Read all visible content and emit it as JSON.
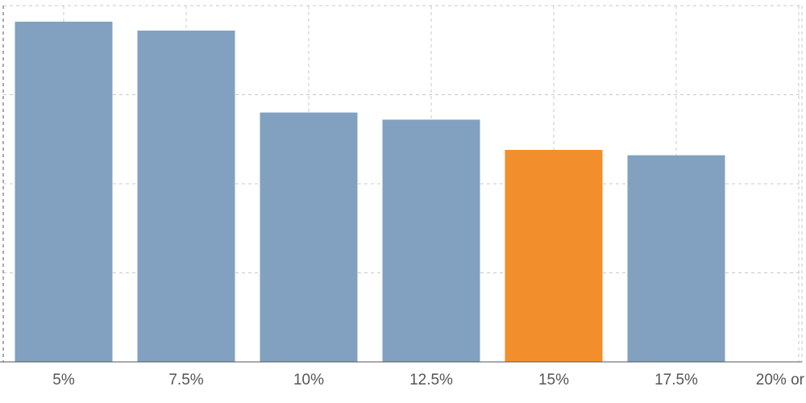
{
  "chart_data": {
    "type": "bar",
    "categories": [
      "5%",
      "7.5%",
      "10%",
      "12.5%",
      "15%",
      "17.5%",
      "20% or"
    ],
    "values": [
      95.5,
      93,
      70,
      68,
      59.5,
      58,
      null
    ],
    "highlight_index": 4,
    "ylim": [
      0,
      100
    ],
    "grid": true,
    "colors": {
      "bar": "#82a1c1",
      "highlight": "#f28e2b"
    },
    "title": "",
    "xlabel": "",
    "ylabel": ""
  }
}
